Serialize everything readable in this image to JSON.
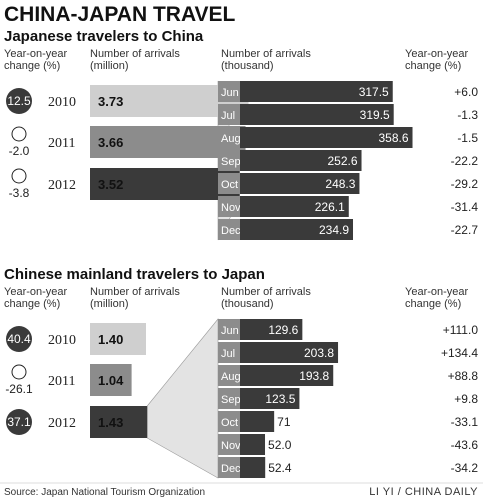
{
  "title": "CHINA-JAPAN TRAVEL",
  "source": "Source: Japan National Tourism Organization",
  "credit": "LI YI / CHINA DAILY",
  "headers": {
    "yoy_left": [
      "Year-on-year",
      "change (%)"
    ],
    "annual": [
      "Number of arrivals",
      "(million)"
    ],
    "monthly": [
      "Number of arrivals",
      "(thousand)"
    ],
    "yoy_right": [
      "Year-on-year",
      "change (%)"
    ]
  },
  "colors": {
    "dark": "#3a3a3a",
    "mid": "#8c8c8c",
    "light": "#cfcfcf"
  },
  "chart_data": [
    {
      "type": "bar",
      "title": "Japanese travelers to China",
      "annual": {
        "years": [
          "2010",
          "2011",
          "2012"
        ],
        "arrivals_million": [
          3.73,
          3.66,
          3.52
        ],
        "yoy_change": [
          "12.5",
          "-2.0",
          "-3.8"
        ]
      },
      "monthly_2012": {
        "months": [
          "Jun",
          "Jul",
          "Aug",
          "Sep",
          "Oct",
          "Nov",
          "Dec"
        ],
        "arrivals_thousand": [
          "317.5",
          "319.5",
          "358.6",
          "252.6",
          "248.3",
          "226.1",
          "234.9"
        ],
        "yoy_change": [
          "+6.0",
          "-1.3",
          "-1.5",
          "-22.2",
          "-29.2",
          "-31.4",
          "-22.7"
        ]
      }
    },
    {
      "type": "bar",
      "title": "Chinese mainland travelers to Japan",
      "annual": {
        "years": [
          "2010",
          "2011",
          "2012"
        ],
        "arrivals_million": [
          1.4,
          1.04,
          1.43
        ],
        "yoy_change": [
          "40.4",
          "-26.1",
          "37.1"
        ]
      },
      "monthly_2012": {
        "months": [
          "Jun",
          "Jul",
          "Aug",
          "Sep",
          "Oct",
          "Nov",
          "Dec"
        ],
        "arrivals_thousand": [
          "129.6",
          "203.8",
          "193.8",
          "123.5",
          "71",
          "52.0",
          "52.4"
        ],
        "yoy_change": [
          "+111.0",
          "+134.4",
          "+88.8",
          "+9.8",
          "-33.1",
          "-43.6",
          "-34.2"
        ]
      }
    }
  ]
}
